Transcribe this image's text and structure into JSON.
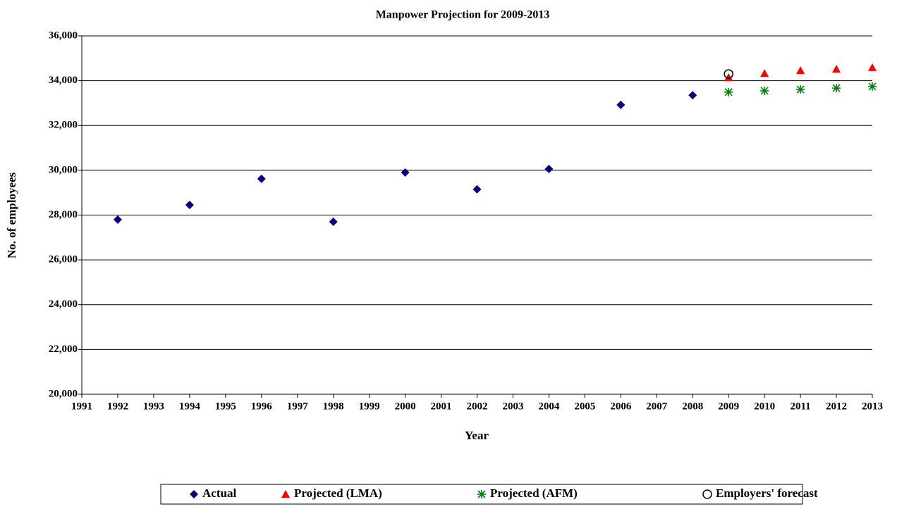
{
  "chart_data": {
    "type": "scatter",
    "title": "Manpower Projection for 2009-2013",
    "xlabel": "Year",
    "ylabel": "No. of employees",
    "xlim": [
      1991,
      2013
    ],
    "xticks": [
      1991,
      1992,
      1993,
      1994,
      1995,
      1996,
      1997,
      1998,
      1999,
      2000,
      2001,
      2002,
      2003,
      2004,
      2005,
      2006,
      2007,
      2008,
      2009,
      2010,
      2011,
      2012,
      2013
    ],
    "ylim": [
      20000,
      36000
    ],
    "yticks": [
      {
        "value": 20000,
        "label": "20,000"
      },
      {
        "value": 22000,
        "label": "22,000"
      },
      {
        "value": 24000,
        "label": "24,000"
      },
      {
        "value": 26000,
        "label": "26,000"
      },
      {
        "value": 28000,
        "label": "28,000"
      },
      {
        "value": 30000,
        "label": "30,000"
      },
      {
        "value": 32000,
        "label": "32,000"
      },
      {
        "value": 34000,
        "label": "34,000"
      },
      {
        "value": 36000,
        "label": "36,000"
      }
    ],
    "grid": true,
    "legend": "bottom",
    "series": [
      {
        "name": "Actual",
        "color": "#000080",
        "marker": "diamond",
        "x": [
          1992,
          1994,
          1996,
          1998,
          2000,
          2002,
          2004,
          2006,
          2008
        ],
        "values": [
          27800,
          28450,
          29620,
          27700,
          29900,
          29150,
          30060,
          32920,
          33350
        ]
      },
      {
        "name": "Projected (LMA)",
        "color": "#ff0000",
        "marker": "triangle",
        "x": [
          2009,
          2010,
          2011,
          2012,
          2013
        ],
        "values": [
          34150,
          34330,
          34460,
          34520,
          34590
        ]
      },
      {
        "name": "Projected (AFM)",
        "color": "#008000",
        "marker": "asterisk",
        "x": [
          2009,
          2010,
          2011,
          2012,
          2013
        ],
        "values": [
          33490,
          33550,
          33610,
          33670,
          33740
        ]
      },
      {
        "name": "Employers' forecast",
        "color": "#000000",
        "marker": "circle",
        "x": [
          2009
        ],
        "values": [
          34300
        ]
      }
    ]
  }
}
